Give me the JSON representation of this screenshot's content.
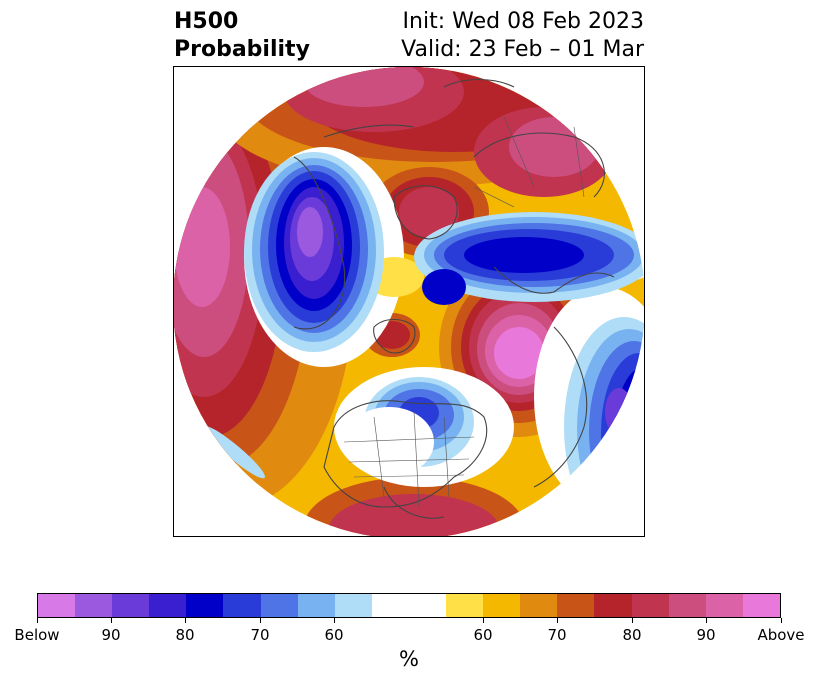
{
  "title": {
    "left_line1": "H500",
    "left_line2": "Probability",
    "right_line1": "Init: Wed 08 Feb 2023",
    "right_line2": "Valid: 23 Feb – 01 Mar"
  },
  "colorbar": {
    "unit": "%",
    "colors": [
      "#d77ae8",
      "#9b59e0",
      "#6a3bd8",
      "#3a1fd0",
      "#0000c8",
      "#2a3cd8",
      "#4f74e6",
      "#79b2f0",
      "#afdcf6",
      "#ffffff",
      "#ffe046",
      "#f4b800",
      "#e08a10",
      "#c85418",
      "#b4242a",
      "#c03450",
      "#cc4e7e",
      "#dc62a8",
      "#e878da"
    ],
    "tick_labels": [
      "Below",
      "90",
      "80",
      "70",
      "60",
      "60",
      "70",
      "80",
      "90",
      "Above"
    ]
  },
  "map": {
    "projection": "north-polar-stereographic",
    "variable": "500 hPa height anomaly probability",
    "anomalies": [
      {
        "sign": "above",
        "region": "North Pacific",
        "max_category": "Above"
      },
      {
        "sign": "above",
        "region": "Scandinavia",
        "max_category": "Above"
      },
      {
        "sign": "above",
        "region": "Greenland",
        "max_category": "90"
      },
      {
        "sign": "above",
        "region": "Europe / North Atlantic",
        "max_category": "90"
      },
      {
        "sign": "above",
        "region": "Mexico",
        "max_category": "80"
      },
      {
        "sign": "below",
        "region": "Western Canada / Alaska",
        "max_category": "Below"
      },
      {
        "sign": "below",
        "region": "Northern Russia",
        "max_category": "80"
      },
      {
        "sign": "below",
        "region": "Central Asia",
        "max_category": "90"
      },
      {
        "sign": "below",
        "region": "Western Atlantic",
        "max_category": "80"
      }
    ]
  }
}
